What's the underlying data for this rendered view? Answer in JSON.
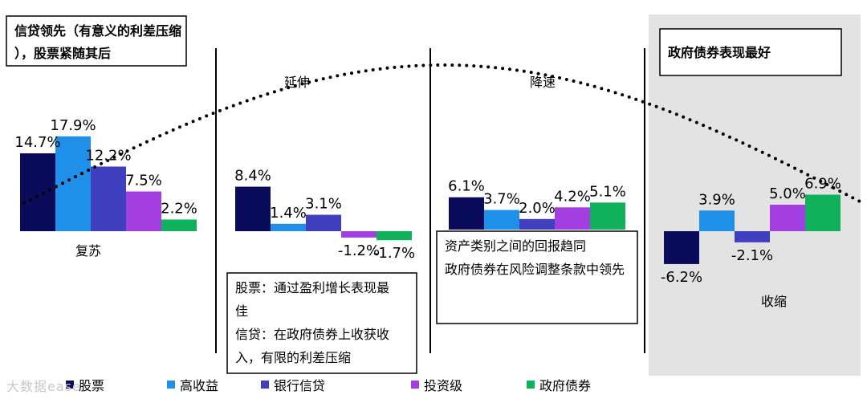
{
  "colors": {
    "股票": "#0b0b5c",
    "高收益": "#1f8fe8",
    "银行信贷": "#3f3fbf",
    "投资级": "#a33fe0",
    "政府债券": "#0fb15a",
    "shade": "#e3e3e3"
  },
  "chart_data": {
    "type": "bar",
    "series_names": [
      "股票",
      "高收益",
      "银行信贷",
      "投资级",
      "政府债券"
    ],
    "panels": [
      {
        "phase": "复苏",
        "values": [
          14.7,
          17.9,
          12.2,
          7.5,
          2.2
        ],
        "labels": [
          "14.7%",
          "17.9%",
          "12.2%",
          "7.5%",
          "2.2%"
        ]
      },
      {
        "phase": "延伸",
        "values": [
          8.4,
          1.4,
          3.1,
          -1.2,
          -1.7
        ],
        "labels": [
          "8.4%",
          "1.4%",
          "3.1%",
          "-1.2%",
          "-1.7%"
        ]
      },
      {
        "phase": "降速",
        "values": [
          6.1,
          3.7,
          2.0,
          4.2,
          5.1
        ],
        "labels": [
          "6.1%",
          "3.7%",
          "2.0%",
          "4.2%",
          "5.1%"
        ]
      },
      {
        "phase": "收缩",
        "values": [
          -6.2,
          3.9,
          -2.1,
          5.0,
          6.9
        ],
        "labels": [
          "-6.2%",
          "3.9%",
          "-2.1%",
          "5.0%",
          "6.9%"
        ]
      }
    ],
    "legend": [
      "股票",
      "高收益",
      "银行信贷",
      "投资级",
      "政府债券"
    ],
    "legend_position": "bottom"
  },
  "callouts": {
    "top_left": "信贷领先（有意义的利差压缩），股票紧随其后",
    "top_right": "政府债券表现最好",
    "mid_extension": "股票：通过盈利增长表现最佳\n信贷：在政府债券上收获收入，有限的利差压缩",
    "mid_slowdown": "资产类别之间的回报趋同\n政府债券在风险调整条款中领先"
  },
  "watermark": "大数据ease"
}
